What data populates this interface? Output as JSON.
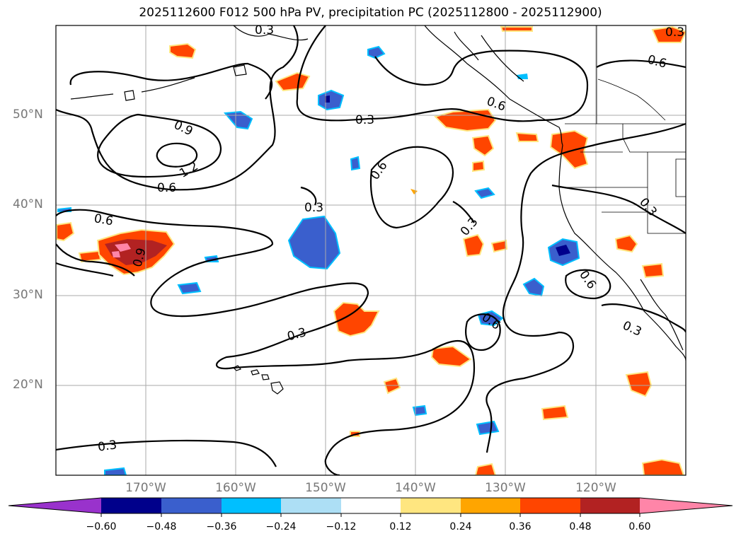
{
  "title": "2025112600 F012 500 hPa PV, precipitation PC (2025112800 - 2025112900)",
  "axes": {
    "lat_labels": [
      "50°N",
      "40°N",
      "30°N",
      "20°N"
    ],
    "lon_labels": [
      "170°W",
      "160°W",
      "150°W",
      "140°W",
      "130°W",
      "120°W"
    ]
  },
  "contour_labels": [
    "0.6",
    "0.6",
    "0.9",
    "1.2",
    "0.6",
    "0.3",
    "0.6",
    "0.6",
    "0.3",
    "0.3",
    "0.6",
    "0.9",
    "0.3",
    "0.3",
    "0.6",
    "0.3",
    "0.3",
    "0.3",
    "0.3"
  ],
  "colorbar": {
    "ticks": [
      "−0.60",
      "−0.48",
      "−0.36",
      "−0.24",
      "−0.12",
      "0.12",
      "0.24",
      "0.36",
      "0.48",
      "0.60"
    ],
    "colors": [
      "#9932CC",
      "#00008B",
      "#3A5FCD",
      "#00BFFF",
      "#ADDFF5",
      "#FFFFFF",
      "#FFE680",
      "#FFA500",
      "#FF4500",
      "#B22222",
      "#FF85A8"
    ]
  },
  "colors": {
    "contour": "#000000",
    "grid": "#aaaaaa",
    "coast": "#000000"
  }
}
